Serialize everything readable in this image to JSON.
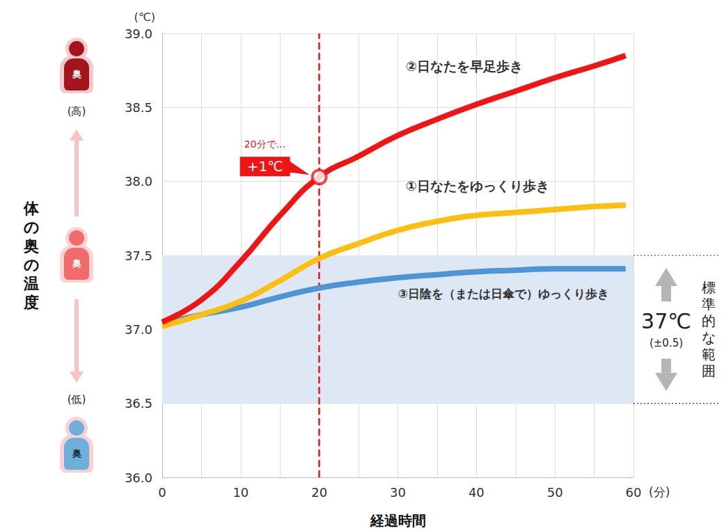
{
  "chart_data": {
    "type": "line",
    "x_label": "経過時間",
    "x_unit": "(分)",
    "y_label": "体の奥の温度",
    "y_unit": "(℃)",
    "x": [
      0,
      5,
      10,
      15,
      20,
      25,
      30,
      35,
      40,
      45,
      50,
      55,
      59
    ],
    "series": [
      {
        "name": "②日なたを早足歩き",
        "color": "#f01414",
        "values": [
          37.05,
          37.2,
          37.46,
          37.77,
          38.03,
          38.17,
          38.31,
          38.42,
          38.52,
          38.61,
          38.7,
          38.78,
          38.85
        ]
      },
      {
        "name": "①日なたをゆっくり歩き",
        "color": "#fbbf10",
        "values": [
          37.02,
          37.1,
          37.19,
          37.33,
          37.48,
          37.58,
          37.67,
          37.73,
          37.77,
          37.79,
          37.81,
          37.83,
          37.84
        ]
      },
      {
        "name": "③日陰を（または日傘で）ゆっくり歩き",
        "color": "#4f94d4",
        "values": [
          37.04,
          37.1,
          37.15,
          37.22,
          37.28,
          37.32,
          37.35,
          37.37,
          37.39,
          37.4,
          37.41,
          37.41,
          37.41
        ]
      }
    ],
    "xlim": [
      0,
      60
    ],
    "xticks": [
      0,
      10,
      20,
      30,
      40,
      50,
      60
    ],
    "ylim": [
      36,
      39
    ],
    "yticks": [
      {
        "value": 36,
        "label": "36.0"
      },
      36.5,
      {
        "value": 37,
        "label": "37.0"
      },
      37.5,
      {
        "value": 38,
        "label": "38.0"
      },
      38.5,
      {
        "value": 39,
        "label": "39.0"
      }
    ],
    "grid": true,
    "band": {
      "range": [
        36.5,
        37.5
      ],
      "color": "#dde8f4",
      "label": "37℃",
      "sublabel": "(±0.5)",
      "title": "標準的な範囲"
    },
    "annotation": {
      "x": 20,
      "y": 38.03,
      "text": "+1℃",
      "note": "20分で…"
    },
    "scale_labels": {
      "high": "(高)",
      "low": "(低)",
      "core": "奥"
    }
  }
}
